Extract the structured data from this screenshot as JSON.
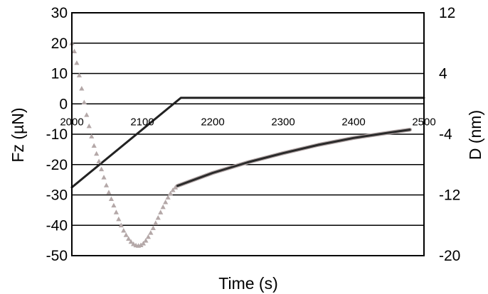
{
  "chart_data": {
    "type": "line",
    "title": "",
    "xlabel": "Time (s)",
    "ylabel_left": "Fz (µN)",
    "ylabel_right": "D (nm)",
    "xlim": [
      2000,
      2500
    ],
    "ylim_left": [
      -50,
      30
    ],
    "ylim_right": [
      -20,
      12
    ],
    "x_ticks": [
      "2000",
      "2100",
      "2200",
      "2300",
      "2400",
      "2500"
    ],
    "y_left_ticks": [
      "30",
      "20",
      "10",
      "0",
      "-10",
      "-20",
      "-30",
      "-40",
      "-50"
    ],
    "y_right_ticks": [
      "12",
      "4",
      "-4",
      "-12",
      "-20"
    ],
    "grid": "horizontal",
    "legend": "none",
    "series": [
      {
        "axis": "left",
        "style": "line",
        "color": "#222222",
        "points": [
          [
            2000,
            -27.5
          ],
          [
            2155,
            2
          ],
          [
            2500,
            2
          ]
        ]
      },
      {
        "axis": "right",
        "style": "triangle-markers",
        "color": "#b4a8a8",
        "points": [
          [
            2000,
            8
          ],
          [
            2010,
            4
          ],
          [
            2020,
            -1
          ],
          [
            2030,
            -5
          ],
          [
            2040,
            -8
          ],
          [
            2050,
            -11
          ],
          [
            2060,
            -13.5
          ],
          [
            2070,
            -16
          ],
          [
            2080,
            -17.7
          ],
          [
            2090,
            -18.6
          ],
          [
            2100,
            -18.5
          ],
          [
            2110,
            -17.3
          ],
          [
            2120,
            -15.5
          ],
          [
            2130,
            -13.5
          ],
          [
            2140,
            -11.8
          ],
          [
            2150,
            -10.8
          ]
        ]
      },
      {
        "axis": "right",
        "style": "line",
        "color": "#b4a8a8",
        "points": [
          [
            2150,
            -10.8
          ],
          [
            2200,
            -9.1
          ],
          [
            2250,
            -7.7
          ],
          [
            2300,
            -6.5
          ],
          [
            2350,
            -5.4
          ],
          [
            2400,
            -4.5
          ],
          [
            2450,
            -3.8
          ],
          [
            2480,
            -3.4
          ]
        ]
      },
      {
        "axis": "right",
        "style": "line",
        "color": "#2a2a2a",
        "points": [
          [
            2150,
            -10.8
          ],
          [
            2200,
            -9.1
          ],
          [
            2250,
            -7.7
          ],
          [
            2300,
            -6.5
          ],
          [
            2350,
            -5.4
          ],
          [
            2400,
            -4.5
          ],
          [
            2450,
            -3.8
          ],
          [
            2480,
            -3.4
          ]
        ]
      }
    ]
  }
}
